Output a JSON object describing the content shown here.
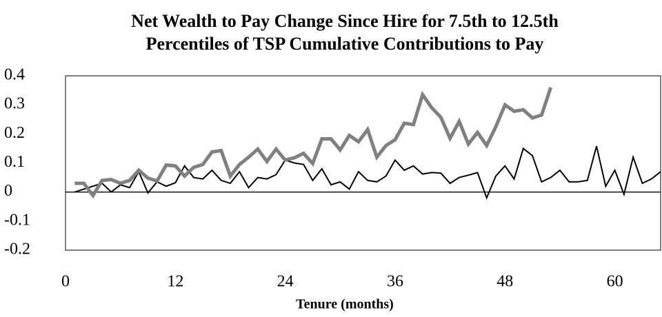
{
  "chart_data": {
    "type": "line",
    "title": [
      "Net Wealth to Pay Change Since Hire for 7.5th to 12.5th",
      "Percentiles of TSP Cumulative Contributions to Pay"
    ],
    "x_label": "Tenure (months)",
    "x": [
      1,
      2,
      3,
      4,
      5,
      6,
      7,
      8,
      9,
      10,
      11,
      12,
      13,
      14,
      15,
      16,
      17,
      18,
      19,
      20,
      21,
      22,
      23,
      24,
      25,
      26,
      27,
      28,
      29,
      30,
      31,
      32,
      33,
      34,
      35,
      36,
      37,
      38,
      39,
      40,
      41,
      42,
      43,
      44,
      45,
      46,
      47,
      48,
      49,
      50,
      51,
      52,
      53,
      54,
      55,
      56,
      57,
      58,
      59,
      60,
      61,
      62,
      63,
      64,
      65
    ],
    "series": [
      {
        "color": "#000000",
        "width": 2,
        "values": [
          0.0,
          0.01,
          0.02,
          0.03,
          0.0,
          0.025,
          0.015,
          0.07,
          -0.003,
          0.035,
          0.02,
          0.032,
          0.09,
          0.05,
          0.045,
          0.075,
          0.04,
          0.03,
          0.07,
          0.015,
          0.05,
          0.045,
          0.06,
          0.11,
          0.1,
          0.095,
          0.04,
          0.08,
          0.025,
          0.035,
          0.01,
          0.07,
          0.04,
          0.035,
          0.055,
          0.11,
          0.075,
          0.09,
          0.062,
          0.067,
          0.065,
          0.03,
          0.05,
          0.058,
          0.067,
          -0.02,
          0.055,
          0.09,
          0.045,
          0.15,
          0.125,
          0.035,
          0.05,
          0.075,
          0.035,
          0.035,
          0.04,
          0.158,
          0.02,
          0.075,
          -0.008,
          0.12,
          0.03,
          0.045,
          0.07
        ]
      },
      {
        "color": "#808080",
        "width": 5,
        "values": [
          0.03,
          0.03,
          -0.012,
          0.04,
          0.043,
          0.03,
          0.04,
          0.075,
          0.048,
          0.038,
          0.093,
          0.09,
          0.055,
          0.085,
          0.095,
          0.138,
          0.143,
          0.055,
          0.095,
          0.12,
          0.148,
          0.105,
          0.148,
          0.11,
          0.118,
          0.133,
          0.098,
          0.183,
          0.183,
          0.145,
          0.195,
          0.173,
          0.215,
          0.12,
          0.16,
          0.18,
          0.237,
          0.232,
          0.335,
          0.29,
          0.257,
          0.185,
          0.243,
          0.165,
          0.205,
          0.16,
          0.225,
          0.3,
          0.278,
          0.283,
          0.255,
          0.265,
          0.36,
          null,
          null,
          null,
          null,
          null,
          null,
          null,
          null,
          null,
          null,
          null,
          null
        ]
      }
    ],
    "xlim": [
      0,
      65
    ],
    "xticks": [
      0,
      12,
      24,
      36,
      48,
      60
    ],
    "ylim": [
      -0.2,
      0.4
    ],
    "yticks": [
      0.4,
      0.3,
      0.2,
      0.1,
      0,
      -0.1,
      -0.2
    ],
    "grid": false
  }
}
